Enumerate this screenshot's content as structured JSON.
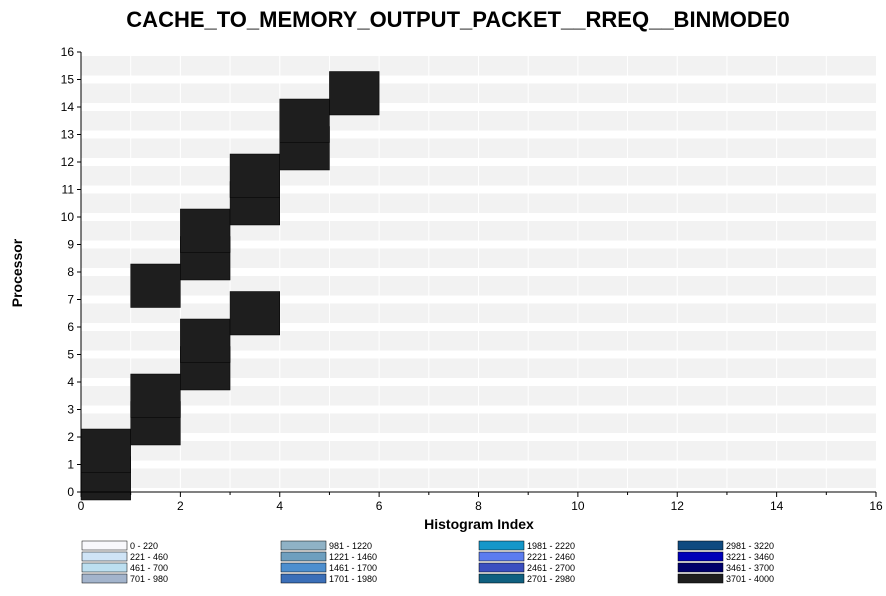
{
  "chart_data": {
    "type": "heatmap",
    "title": "CACHE_TO_MEMORY_OUTPUT_PACKET__RREQ__BINMODE0",
    "xlabel": "Histogram Index",
    "ylabel": "Processor",
    "xlim": [
      0,
      16
    ],
    "ylim": [
      0,
      16
    ],
    "x_ticks": [
      "0",
      "2",
      "4",
      "6",
      "8",
      "10",
      "12",
      "14",
      "16"
    ],
    "y_ticks": [
      "0",
      "1",
      "2",
      "3",
      "4",
      "5",
      "6",
      "7",
      "8",
      "9",
      "10",
      "11",
      "12",
      "13",
      "14",
      "15",
      "16"
    ],
    "row_band_color": "#f2f2f2",
    "cells": [
      {
        "processor": 1,
        "bin": 0,
        "range": "3701 - 4000"
      },
      {
        "processor": 2,
        "bin": 0,
        "range": "3701 - 4000"
      },
      {
        "processor": 3,
        "bin": 1,
        "range": "3701 - 4000"
      },
      {
        "processor": 4,
        "bin": 1,
        "range": "3701 - 4000"
      },
      {
        "processor": 5,
        "bin": 2,
        "range": "3701 - 4000"
      },
      {
        "processor": 6,
        "bin": 2,
        "range": "3701 - 4000"
      },
      {
        "processor": 7,
        "bin": 3,
        "range": "3701 - 4000"
      },
      {
        "processor": 8,
        "bin": 1,
        "range": "3701 - 4000"
      },
      {
        "processor": 9,
        "bin": 2,
        "range": "3701 - 4000"
      },
      {
        "processor": 10,
        "bin": 2,
        "range": "3701 - 4000"
      },
      {
        "processor": 11,
        "bin": 3,
        "range": "3701 - 4000"
      },
      {
        "processor": 12,
        "bin": 3,
        "range": "3701 - 4000"
      },
      {
        "processor": 13,
        "bin": 4,
        "range": "3701 - 4000"
      },
      {
        "processor": 14,
        "bin": 4,
        "range": "3701 - 4000"
      },
      {
        "processor": 15,
        "bin": 5,
        "range": "3701 - 4000"
      }
    ],
    "legend": [
      {
        "label": "0 - 220",
        "color": "#f8f8fc"
      },
      {
        "label": "221 - 460",
        "color": "#cfe4f6"
      },
      {
        "label": "461 - 700",
        "color": "#bcdff0"
      },
      {
        "label": "701 - 980",
        "color": "#a3b4cc"
      },
      {
        "label": "981 - 1220",
        "color": "#8fb2c6"
      },
      {
        "label": "1221 - 1460",
        "color": "#6e9fbf"
      },
      {
        "label": "1461 - 1700",
        "color": "#4d8fcf"
      },
      {
        "label": "1701 - 1980",
        "color": "#3b6fb8"
      },
      {
        "label": "1981 - 2220",
        "color": "#1597c9"
      },
      {
        "label": "2221 - 2460",
        "color": "#5b7cf0"
      },
      {
        "label": "2461 - 2700",
        "color": "#3b4fc0"
      },
      {
        "label": "2701 - 2980",
        "color": "#0f6080"
      },
      {
        "label": "2981 - 3220",
        "color": "#0f4a80"
      },
      {
        "label": "3221 - 3460",
        "color": "#0000b8"
      },
      {
        "label": "3461 - 3700",
        "color": "#00006a"
      },
      {
        "label": "3701 - 4000",
        "color": "#1e1e1e"
      }
    ]
  }
}
